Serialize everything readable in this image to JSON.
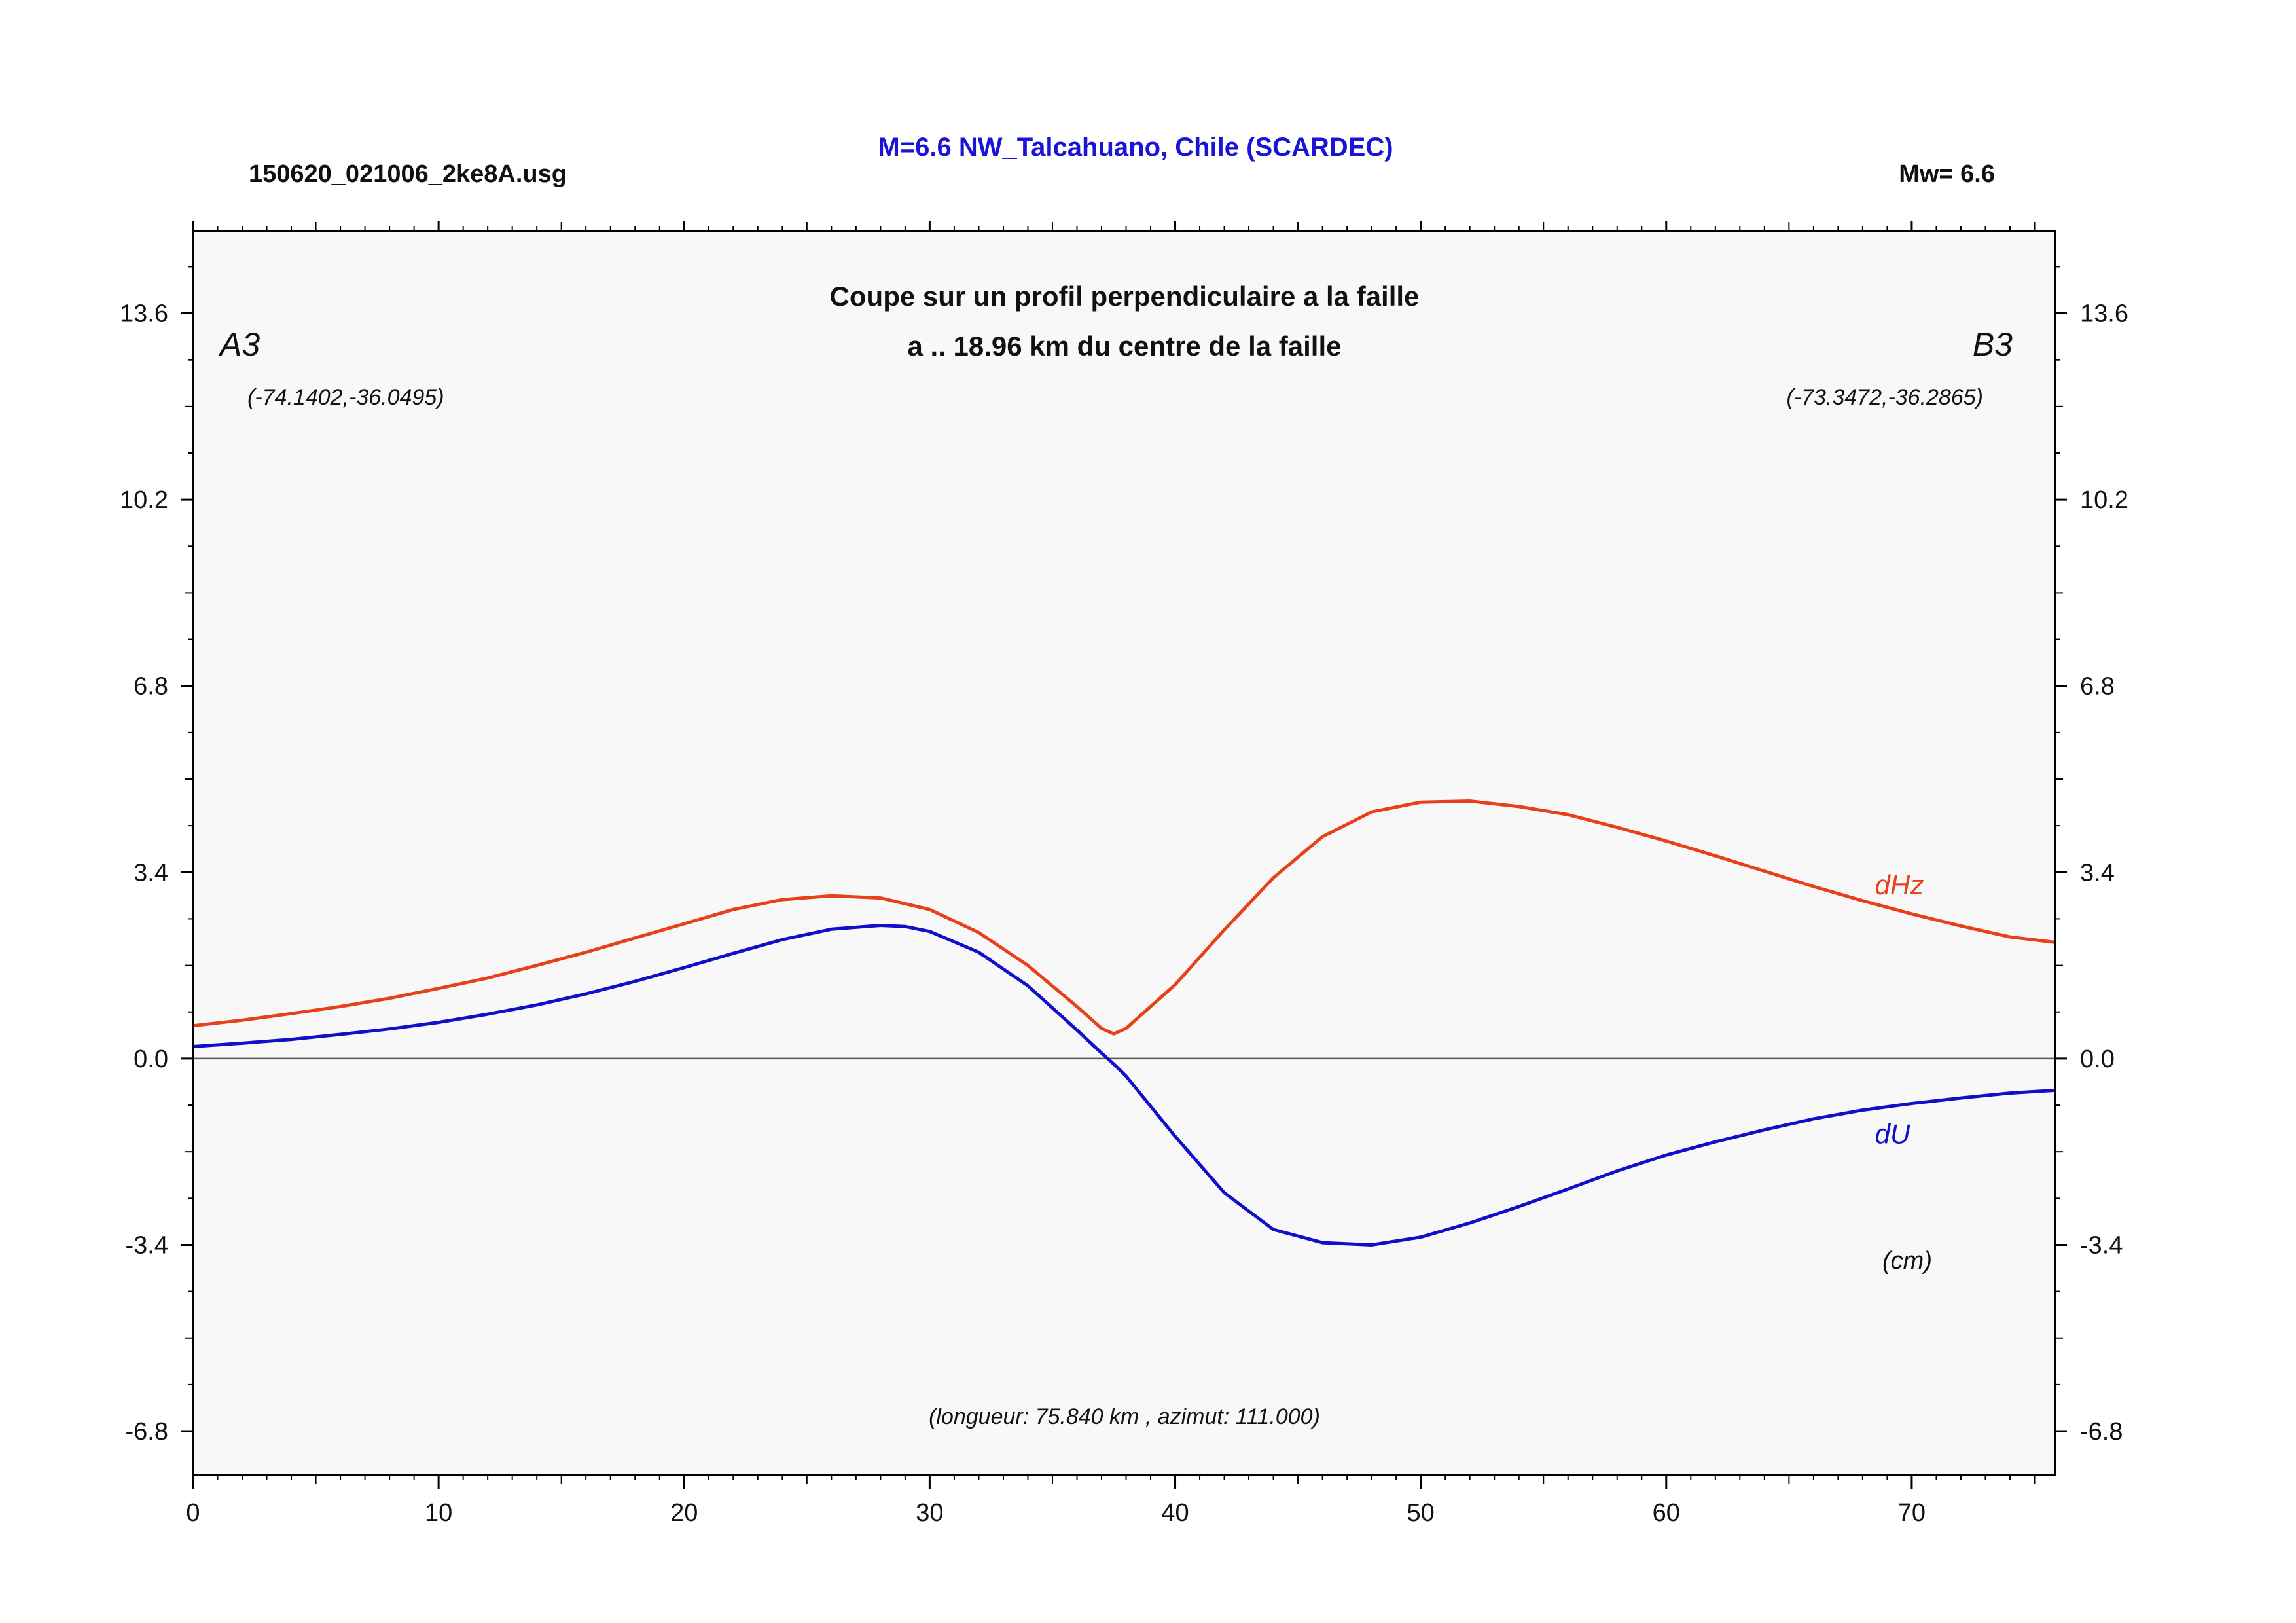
{
  "header": {
    "filename": "150620_021006_2ke8A.usg",
    "title": "M=6.6 NW_Talcahuano, Chile (SCARDEC)",
    "magnitude": "Mw= 6.6"
  },
  "colors": {
    "title": "#1a14d6",
    "dHz": "#e8401a",
    "dU": "#1010c8",
    "plot_bg": "#f8f8f8",
    "zero_line": "#555555"
  },
  "chart_data": {
    "type": "line",
    "title": "Coupe sur un profil perpendiculaire a la faille",
    "subtitle": "a .. 18.96 km du centre de la faille",
    "xlabel": "",
    "ylabel": "",
    "xlim": [
      0,
      75.84
    ],
    "ylim": [
      -7.6,
      15.1
    ],
    "x_ticks": [
      0,
      10,
      20,
      30,
      40,
      50,
      60,
      70
    ],
    "y_ticks": [
      13.6,
      10.2,
      6.8,
      3.4,
      0.0,
      -3.4,
      -6.8
    ],
    "grid": false,
    "annotations": {
      "left_point": "A3",
      "left_coords": "(-74.1402,-36.0495)",
      "right_point": "B3",
      "right_coords": "(-73.3472,-36.2865)",
      "unit": "(cm)",
      "footer": "(longueur: 75.840 km , azimut: 111.000)"
    },
    "series": [
      {
        "name": "dHz",
        "x": [
          0,
          2,
          4,
          6,
          8,
          10,
          12,
          14,
          16,
          18,
          20,
          22,
          24,
          26,
          28,
          30,
          32,
          34,
          36,
          37,
          37.5,
          38,
          40,
          42,
          44,
          46,
          48,
          50,
          52,
          54,
          56,
          58,
          60,
          62,
          64,
          66,
          68,
          70,
          72,
          74,
          75.84
        ],
        "y": [
          0.6,
          0.7,
          0.82,
          0.95,
          1.1,
          1.28,
          1.47,
          1.7,
          1.94,
          2.2,
          2.46,
          2.72,
          2.9,
          2.97,
          2.93,
          2.72,
          2.3,
          1.7,
          0.95,
          0.55,
          0.45,
          0.55,
          1.35,
          2.35,
          3.3,
          4.05,
          4.5,
          4.68,
          4.7,
          4.6,
          4.45,
          4.22,
          3.97,
          3.7,
          3.42,
          3.14,
          2.88,
          2.64,
          2.42,
          2.22,
          2.12
        ]
      },
      {
        "name": "dU",
        "x": [
          0,
          2,
          4,
          6,
          8,
          10,
          12,
          14,
          16,
          18,
          20,
          22,
          24,
          26,
          28,
          29,
          30,
          32,
          34,
          36,
          37,
          37.5,
          38,
          40,
          42,
          44,
          46,
          48,
          50,
          52,
          54,
          56,
          58,
          60,
          62,
          64,
          66,
          68,
          70,
          72,
          74,
          75.84
        ],
        "y": [
          0.22,
          0.28,
          0.35,
          0.44,
          0.54,
          0.66,
          0.81,
          0.98,
          1.18,
          1.41,
          1.66,
          1.92,
          2.17,
          2.36,
          2.43,
          2.41,
          2.32,
          1.94,
          1.33,
          0.52,
          0.1,
          -0.1,
          -0.32,
          -1.42,
          -2.45,
          -3.12,
          -3.36,
          -3.4,
          -3.26,
          -3.0,
          -2.7,
          -2.38,
          -2.05,
          -1.76,
          -1.52,
          -1.3,
          -1.1,
          -0.94,
          -0.82,
          -0.72,
          -0.63,
          -0.58
        ]
      }
    ],
    "series_label_colors": [
      "#e8401a",
      "#1010c8"
    ]
  }
}
